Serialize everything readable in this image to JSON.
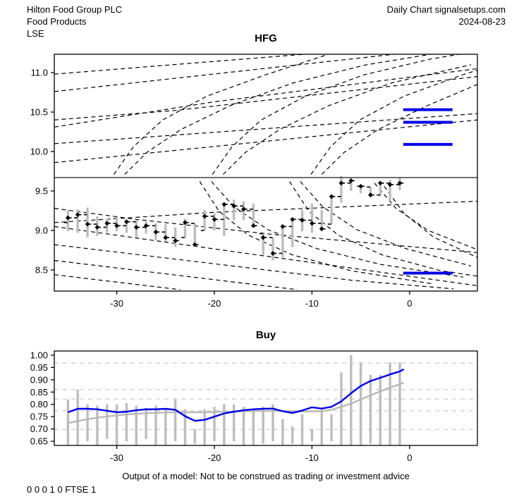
{
  "header": {
    "company": "Hilton Food Group PLC",
    "sector": "Food Products",
    "exchange": "LSE",
    "chart_type": "Daily Chart signalsetups.com",
    "date": "2024-08-23"
  },
  "footer": {
    "disclaimer": "Output of a model: Not to be construed as trading or investment advice",
    "signals": "0 0 0 1 0 FTSE 1"
  },
  "colors": {
    "accent_blue": "#0000e8",
    "bar_gray": "#bdbdbd",
    "trend_gray": "#b8b8b8",
    "grid_gray": "#cfcfcf",
    "axis_black": "#000000"
  },
  "chart_data": [
    {
      "panel": "price",
      "type": "ohlc-forecast",
      "title": "HFG",
      "xlim": [
        -36.4,
        6.95
      ],
      "ylim": [
        8.232,
        11.232
      ],
      "x_ticks": [
        {
          "label": "-30",
          "value": -30
        },
        {
          "label": "-20",
          "value": -20
        },
        {
          "label": "-10",
          "value": -10
        },
        {
          "label": "0",
          "value": 0
        }
      ],
      "y_ticks": [
        {
          "label": "11.0",
          "value": 11.0
        },
        {
          "label": "10.5",
          "value": 10.5
        },
        {
          "label": "10.0",
          "value": 10.0
        },
        {
          "label": "9.5",
          "value": 9.5
        },
        {
          "label": "9.0",
          "value": 9.0
        },
        {
          "label": "8.5",
          "value": 8.5
        }
      ],
      "solid_hline": 9.67,
      "blue_levels": [
        {
          "value": 10.53,
          "x1": -0.65,
          "x2": 4.4
        },
        {
          "value": 10.37,
          "x1": -0.65,
          "x2": 4.4
        },
        {
          "value": 10.09,
          "x1": -0.65,
          "x2": 4.4
        },
        {
          "value": 8.46,
          "x1": -0.65,
          "x2": 4.4
        }
      ],
      "bars": [
        [
          -35,
          9.1,
          9.26,
          8.99,
          9.16
        ],
        [
          -34,
          9.16,
          9.27,
          8.97,
          9.2
        ],
        [
          -33,
          9.2,
          9.29,
          8.91,
          9.08
        ],
        [
          -32,
          9.08,
          9.18,
          8.93,
          9.04
        ],
        [
          -31,
          9.04,
          9.15,
          8.97,
          9.09
        ],
        [
          -30,
          9.09,
          9.17,
          8.99,
          9.06
        ],
        [
          -29,
          9.06,
          9.13,
          8.97,
          9.11
        ],
        [
          -28,
          9.11,
          9.13,
          8.91,
          9.04
        ],
        [
          -27,
          9.04,
          9.11,
          8.96,
          9.06
        ],
        [
          -26,
          9.06,
          9.09,
          8.88,
          8.98
        ],
        [
          -25,
          8.98,
          9.08,
          8.86,
          8.91
        ],
        [
          -24,
          8.91,
          9.04,
          8.79,
          8.87
        ],
        [
          -23,
          8.91,
          9.15,
          8.91,
          9.1
        ],
        [
          -22,
          9.09,
          9.09,
          8.79,
          8.82
        ],
        [
          -21,
          9.0,
          9.26,
          9.0,
          9.18
        ],
        [
          -20,
          9.18,
          9.22,
          9.0,
          9.14
        ],
        [
          -19,
          9.14,
          9.34,
          8.93,
          9.33
        ],
        [
          -18,
          9.33,
          9.39,
          9.13,
          9.31
        ],
        [
          -17,
          9.31,
          9.37,
          9.13,
          9.27
        ],
        [
          -16,
          9.27,
          9.34,
          9.06,
          9.06
        ],
        [
          -15,
          8.96,
          8.96,
          8.69,
          8.91
        ],
        [
          -14,
          8.91,
          8.91,
          8.62,
          8.71
        ],
        [
          -13,
          8.71,
          9.06,
          8.66,
          9.05
        ],
        [
          -12,
          9.05,
          9.15,
          8.79,
          9.14
        ],
        [
          -11,
          9.14,
          9.26,
          8.99,
          9.13
        ],
        [
          -10,
          9.13,
          9.34,
          8.97,
          9.09
        ],
        [
          -9,
          9.09,
          9.26,
          9.0,
          9.02
        ],
        [
          -8,
          9.08,
          9.43,
          9.08,
          9.43
        ],
        [
          -7,
          9.43,
          9.69,
          9.35,
          9.6
        ],
        [
          -6,
          9.6,
          9.66,
          9.5,
          9.63
        ],
        [
          -5,
          9.56,
          9.58,
          9.47,
          9.56
        ],
        [
          -4,
          9.55,
          9.55,
          9.42,
          9.45
        ],
        [
          -3,
          9.45,
          9.61,
          9.43,
          9.6
        ],
        [
          -2,
          9.6,
          9.64,
          9.37,
          9.58
        ],
        [
          -1,
          9.58,
          9.67,
          9.51,
          9.6
        ]
      ],
      "dashed_projections": [
        [
          [
            -36.4,
            10.98
          ],
          [
            -10,
            11.24
          ]
        ],
        [
          [
            -36.4,
            10.76
          ],
          [
            -1,
            11.24
          ]
        ],
        [
          [
            -36.4,
            10.4
          ],
          [
            -24,
            10.52
          ],
          [
            6.95,
            10.95
          ]
        ],
        [
          [
            -36.4,
            10.31
          ],
          [
            -20,
            10.63
          ],
          [
            6.95,
            11.05
          ]
        ],
        [
          [
            -36.4,
            10.1
          ],
          [
            6.95,
            10.48
          ]
        ],
        [
          [
            -36.4,
            9.86
          ],
          [
            6.95,
            10.4
          ]
        ],
        [
          [
            -30.3,
            9.71
          ],
          [
            -28.3,
            10.06
          ],
          [
            -25.3,
            10.4
          ],
          [
            -20.8,
            10.7
          ],
          [
            -14.8,
            10.97
          ],
          [
            -8.1,
            11.24
          ]
        ],
        [
          [
            -29.2,
            9.71
          ],
          [
            -26.9,
            9.99
          ],
          [
            -23.4,
            10.28
          ],
          [
            -18.4,
            10.58
          ],
          [
            -11.9,
            10.87
          ],
          [
            -4.4,
            11.1
          ],
          [
            2.6,
            11.24
          ]
        ],
        [
          [
            -20.2,
            9.71
          ],
          [
            -18.2,
            10.06
          ],
          [
            -15.2,
            10.4
          ],
          [
            -10.7,
            10.7
          ],
          [
            -4.7,
            10.97
          ],
          [
            2.1,
            11.17
          ],
          [
            6.95,
            11.27
          ]
        ],
        [
          [
            -19.1,
            9.71
          ],
          [
            -16.8,
            9.99
          ],
          [
            -13.3,
            10.28
          ],
          [
            -8.3,
            10.58
          ],
          [
            -1.8,
            10.87
          ],
          [
            6.3,
            11.1
          ]
        ],
        [
          [
            -10.1,
            9.71
          ],
          [
            -8.1,
            10.06
          ],
          [
            -5.1,
            10.4
          ],
          [
            -0.6,
            10.7
          ],
          [
            5.4,
            10.97
          ],
          [
            6.95,
            11.03
          ]
        ],
        [
          [
            -9.0,
            9.71
          ],
          [
            -6.7,
            9.99
          ],
          [
            -3.2,
            10.28
          ],
          [
            1.8,
            10.58
          ],
          [
            6.95,
            10.85
          ]
        ],
        [
          [
            -36.4,
            9.1
          ],
          [
            -20,
            9.23
          ],
          [
            6.95,
            9.37
          ]
        ],
        [
          [
            -36.4,
            9.28
          ],
          [
            -28,
            9.14
          ],
          [
            -14,
            8.95
          ],
          [
            6.95,
            8.72
          ]
        ],
        [
          [
            -36.4,
            9.05
          ],
          [
            6.95,
            8.3
          ]
        ],
        [
          [
            -36.4,
            8.82
          ],
          [
            -6,
            8.37
          ],
          [
            4.5,
            8.26
          ]
        ],
        [
          [
            -36.4,
            8.62
          ],
          [
            -11.5,
            8.25
          ]
        ],
        [
          [
            -36.4,
            8.44
          ],
          [
            -23.5,
            8.25
          ]
        ],
        [
          [
            -21.5,
            9.62
          ],
          [
            -19.5,
            9.24
          ],
          [
            -16.5,
            8.94
          ],
          [
            -12,
            8.69
          ],
          [
            -6,
            8.49
          ],
          [
            2.5,
            8.32
          ]
        ],
        [
          [
            -20.3,
            9.62
          ],
          [
            -18,
            9.3
          ],
          [
            -14.5,
            9.01
          ],
          [
            -9.5,
            8.77
          ],
          [
            -3,
            8.57
          ],
          [
            5.5,
            8.41
          ]
        ],
        [
          [
            -12.3,
            9.62
          ],
          [
            -10.3,
            9.24
          ],
          [
            -7.3,
            8.94
          ],
          [
            -2.8,
            8.69
          ],
          [
            3.2,
            8.49
          ],
          [
            6.95,
            8.42
          ]
        ],
        [
          [
            -11.2,
            9.62
          ],
          [
            -8.9,
            9.3
          ],
          [
            -5.4,
            9.01
          ],
          [
            -0.4,
            8.77
          ],
          [
            6.3,
            8.55
          ]
        ],
        [
          [
            -3.6,
            9.6
          ],
          [
            -1.4,
            9.28
          ],
          [
            1.9,
            9.0
          ],
          [
            6.9,
            8.76
          ]
        ],
        [
          [
            -2.6,
            9.56
          ],
          [
            -0.6,
            9.22
          ],
          [
            2.4,
            8.92
          ],
          [
            6.9,
            8.66
          ]
        ]
      ]
    },
    {
      "panel": "probability",
      "type": "line",
      "title": "Buy",
      "xlim": [
        -36.4,
        6.95
      ],
      "ylim": [
        0.633,
        1.017
      ],
      "x_ticks": [
        {
          "label": "-30",
          "value": -30
        },
        {
          "label": "-20",
          "value": -20
        },
        {
          "label": "-10",
          "value": -10
        },
        {
          "label": "0",
          "value": 0
        }
      ],
      "y_ticks": [
        {
          "label": "1.00",
          "value": 1.0
        },
        {
          "label": "0.95",
          "value": 0.95
        },
        {
          "label": "0.90",
          "value": 0.9
        },
        {
          "label": "0.85",
          "value": 0.85
        },
        {
          "label": "0.80",
          "value": 0.8
        },
        {
          "label": "0.75",
          "value": 0.75
        },
        {
          "label": "0.70",
          "value": 0.7
        },
        {
          "label": "0.65",
          "value": 0.65
        }
      ],
      "threshold_lines": [
        0.968,
        0.86,
        0.822,
        0.774,
        0.698
      ],
      "error_bars": [
        [
          -35,
          0.635,
          0.82
        ],
        [
          -34,
          0.635,
          0.86
        ],
        [
          -33,
          0.65,
          0.8
        ],
        [
          -32,
          0.635,
          0.795
        ],
        [
          -31,
          0.66,
          0.8
        ],
        [
          -30,
          0.635,
          0.8
        ],
        [
          -29,
          0.65,
          0.805
        ],
        [
          -28,
          0.635,
          0.795
        ],
        [
          -27,
          0.66,
          0.785
        ],
        [
          -26,
          0.635,
          0.795
        ],
        [
          -25,
          0.635,
          0.78
        ],
        [
          -24,
          0.65,
          0.82
        ],
        [
          -23,
          0.635,
          0.78
        ],
        [
          -22,
          0.64,
          0.7
        ],
        [
          -21,
          0.635,
          0.78
        ],
        [
          -20,
          0.65,
          0.79
        ],
        [
          -19,
          0.635,
          0.8
        ],
        [
          -18,
          0.65,
          0.8
        ],
        [
          -17,
          0.635,
          0.79
        ],
        [
          -16,
          0.635,
          0.78
        ],
        [
          -15,
          0.64,
          0.79
        ],
        [
          -14,
          0.65,
          0.8
        ],
        [
          -13,
          0.635,
          0.74
        ],
        [
          -12,
          0.64,
          0.71
        ],
        [
          -11,
          0.635,
          0.76
        ],
        [
          -10,
          0.65,
          0.7
        ],
        [
          -9,
          0.635,
          0.78
        ],
        [
          -8,
          0.65,
          0.76
        ],
        [
          -7,
          0.635,
          0.93
        ],
        [
          -6,
          0.635,
          1.0
        ],
        [
          -5,
          0.635,
          0.97
        ],
        [
          -4,
          0.64,
          0.92
        ],
        [
          -3,
          0.635,
          0.92
        ],
        [
          -2,
          0.635,
          0.97
        ],
        [
          -1,
          0.635,
          0.97
        ]
      ],
      "series": [
        {
          "name": "buy-probability",
          "color_key": "accent_blue",
          "points": [
            [
              -35,
              0.768
            ],
            [
              -34,
              0.782
            ],
            [
              -33,
              0.782
            ],
            [
              -32,
              0.78
            ],
            [
              -31,
              0.774
            ],
            [
              -30,
              0.768
            ],
            [
              -29,
              0.77
            ],
            [
              -28,
              0.776
            ],
            [
              -27,
              0.78
            ],
            [
              -26,
              0.78
            ],
            [
              -25,
              0.782
            ],
            [
              -24,
              0.778
            ],
            [
              -23,
              0.752
            ],
            [
              -22,
              0.733
            ],
            [
              -21,
              0.737
            ],
            [
              -20,
              0.75
            ],
            [
              -19,
              0.763
            ],
            [
              -18,
              0.77
            ],
            [
              -17,
              0.776
            ],
            [
              -16,
              0.78
            ],
            [
              -15,
              0.782
            ],
            [
              -14,
              0.783
            ],
            [
              -13,
              0.772
            ],
            [
              -12,
              0.765
            ],
            [
              -11,
              0.775
            ],
            [
              -10,
              0.788
            ],
            [
              -9,
              0.783
            ],
            [
              -8,
              0.79
            ],
            [
              -7,
              0.812
            ],
            [
              -6,
              0.845
            ],
            [
              -5,
              0.875
            ],
            [
              -4,
              0.895
            ],
            [
              -3,
              0.908
            ],
            [
              -2,
              0.922
            ],
            [
              -1,
              0.934
            ],
            [
              -0.6,
              0.943
            ]
          ]
        },
        {
          "name": "smoothed-trend",
          "color_key": "trend_gray",
          "points": [
            [
              -35,
              0.724
            ],
            [
              -33,
              0.74
            ],
            [
              -31,
              0.751
            ],
            [
              -29,
              0.759
            ],
            [
              -27,
              0.764
            ],
            [
              -25,
              0.767
            ],
            [
              -23,
              0.768
            ],
            [
              -21,
              0.768
            ],
            [
              -19,
              0.77
            ],
            [
              -17,
              0.772
            ],
            [
              -15,
              0.773
            ],
            [
              -13,
              0.774
            ],
            [
              -11,
              0.771
            ],
            [
              -9,
              0.772
            ],
            [
              -8,
              0.778
            ],
            [
              -7,
              0.79
            ],
            [
              -6,
              0.803
            ],
            [
              -5,
              0.82
            ],
            [
              -4,
              0.837
            ],
            [
              -3,
              0.853
            ],
            [
              -2,
              0.868
            ],
            [
              -1,
              0.882
            ],
            [
              -0.6,
              0.888
            ]
          ]
        }
      ]
    }
  ]
}
